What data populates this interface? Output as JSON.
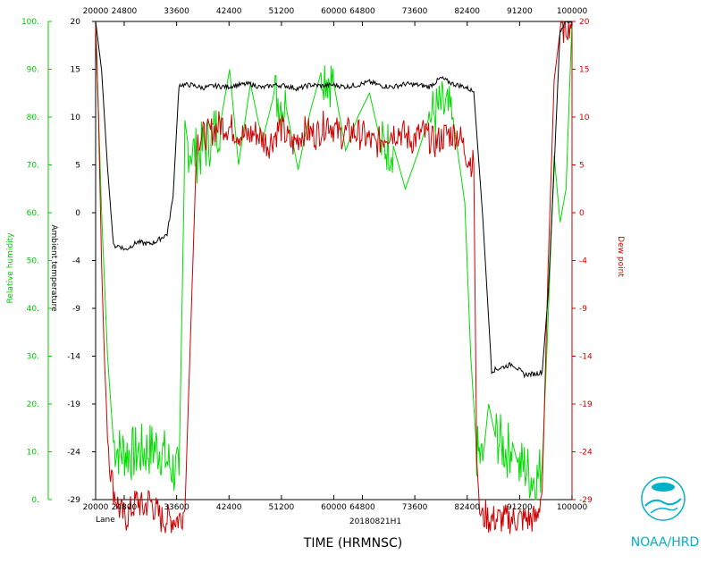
{
  "chart_data": {
    "type": "line",
    "storm": "Lane",
    "flight_id": "20180821H1",
    "xlabel": "TIME (HRMNSC)",
    "left_axis1_label": "Relative humidity",
    "left_axis2_label": "Ambient temperature",
    "right_axis_label": "Dew point",
    "org_label": "NOAA/HRD",
    "xlim": [
      20000,
      100000
    ],
    "x_ticks": [
      "20000",
      "24800",
      "33600",
      "42400",
      "51200",
      "60000",
      "64800",
      "73600",
      "82400",
      "91200",
      "100000"
    ],
    "rh_lim": [
      0,
      100
    ],
    "rh_ticks": [
      "0.",
      "10.",
      "20.",
      "30.",
      "40.",
      "50.",
      "60.",
      "70.",
      "80.",
      "90.",
      "100."
    ],
    "temp_lim": [
      -29,
      20
    ],
    "temp_ticks": [
      "-29",
      "-24",
      "-19",
      "-14",
      "-9",
      "-4",
      "0",
      "5",
      "10",
      "15",
      "20"
    ],
    "colors": {
      "temperature": "#000000",
      "dewpoint": "#cc0000",
      "rh": "#00dd00",
      "axis_green": "#00cc00",
      "axis_red": "#cc0000",
      "logo": "#00b0c8"
    },
    "series": [
      {
        "key": "temperature",
        "axis": "temp",
        "x": [
          20000,
          21000,
          22000,
          23000,
          24000,
          25000,
          26000,
          27000,
          28000,
          29000,
          30000,
          31000,
          32000,
          33000,
          34000,
          36000,
          38000,
          40000,
          42000,
          44000,
          46000,
          48000,
          50000,
          52000,
          54000,
          56000,
          58000,
          60000,
          62000,
          64000,
          66000,
          68000,
          70000,
          72000,
          74000,
          76000,
          78000,
          80000,
          82000,
          83500,
          85000,
          86500,
          88000,
          90000,
          92000,
          94000,
          95000,
          96000,
          97000,
          98000,
          99000,
          100000
        ],
        "y": [
          20,
          15,
          5,
          -3,
          -3,
          -3.4,
          -3,
          -2.6,
          -2.7,
          -2.8,
          -2.6,
          -2.2,
          -1.8,
          2,
          13.5,
          13.5,
          13.2,
          13.4,
          13.3,
          13.5,
          13.6,
          13.2,
          13.5,
          13.4,
          13.1,
          13.5,
          13.4,
          13.5,
          13.3,
          13.5,
          13.8,
          13.4,
          13.3,
          13.6,
          13.5,
          13.3,
          14.2,
          13.6,
          13.3,
          12.8,
          0,
          -15.8,
          -15.5,
          -15.1,
          -16.2,
          -16.1,
          -15.9,
          -8,
          5,
          19,
          20,
          20
        ]
      },
      {
        "key": "dewpoint",
        "axis": "temp",
        "x": [
          20000,
          20500,
          21000,
          21500,
          22000,
          22500,
          23000,
          24000,
          25000,
          26000,
          27000,
          28000,
          29000,
          30000,
          31000,
          32000,
          33000,
          34000,
          35000,
          37000,
          39000,
          41000,
          43000,
          45000,
          47000,
          49000,
          51000,
          53000,
          55000,
          57000,
          59000,
          61000,
          63000,
          65000,
          67000,
          69000,
          71000,
          73000,
          75000,
          77000,
          79000,
          81000,
          82500,
          83500,
          84000,
          84500,
          85000,
          85500,
          86000,
          87000,
          88000,
          89000,
          90000,
          91000,
          92000,
          93000,
          94000,
          95000,
          96000,
          97000,
          98000,
          99000,
          100000
        ],
        "y": [
          20,
          10,
          -5,
          -15,
          -22,
          -26,
          -28,
          -30,
          -31,
          -30,
          -29,
          -30,
          -29,
          -30,
          -31,
          -31,
          -31,
          -31,
          -30,
          8,
          8.5,
          9.5,
          9,
          8.2,
          8.6,
          7.4,
          9.2,
          7.3,
          8.8,
          8.4,
          9.8,
          8.4,
          8.7,
          8.3,
          7.3,
          8.6,
          8.8,
          7.8,
          8.6,
          7.5,
          8.5,
          8.4,
          6.1,
          5.3,
          -25,
          -30,
          -31,
          -30.5,
          -31,
          -31,
          -31,
          -31,
          -31,
          -31,
          -31,
          -31,
          -31,
          -28,
          -5,
          14,
          19,
          19.5,
          20
        ]
      },
      {
        "key": "rh",
        "axis": "rh",
        "x": [
          20000,
          21000,
          22000,
          23000,
          24000,
          25000,
          26000,
          27000,
          28000,
          29000,
          30000,
          31000,
          32000,
          33000,
          34000,
          35000,
          37000,
          39000,
          41000,
          42500,
          44000,
          46000,
          48000,
          50000,
          52000,
          54000,
          56000,
          58000,
          60000,
          62000,
          64000,
          66000,
          68000,
          70000,
          72000,
          74000,
          76000,
          78000,
          80000,
          82000,
          83000,
          84000,
          85000,
          86000,
          87000,
          88000,
          89000,
          90000,
          91000,
          92000,
          93000,
          94000,
          95000,
          96000,
          97000,
          98000,
          99000,
          100000
        ],
        "y": [
          100,
          60,
          30,
          12,
          10,
          10,
          9.5,
          9.8,
          10.2,
          10.4,
          11,
          10.5,
          8,
          6.5,
          5,
          75,
          72,
          75,
          79,
          90,
          70,
          87,
          75,
          85,
          82,
          69,
          81,
          90,
          87,
          73,
          80,
          85,
          74,
          74,
          65,
          72,
          80,
          82,
          80,
          62,
          30,
          10,
          8,
          20,
          14,
          12,
          10,
          12,
          7,
          7,
          5,
          4,
          7,
          38,
          72,
          58,
          65,
          100
        ]
      }
    ]
  }
}
